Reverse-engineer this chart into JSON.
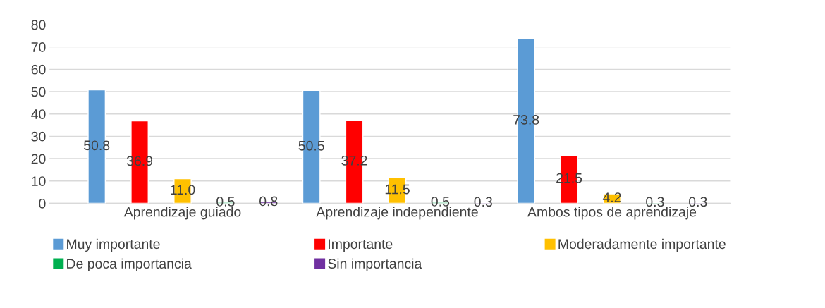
{
  "chart_data": {
    "type": "bar",
    "categories": [
      "Aprendizaje guiado",
      "Aprendizaje independiente",
      "Ambos tipos de aprendizaje"
    ],
    "series": [
      {
        "name": "Muy importante",
        "color": "#5b9bd5",
        "values": [
          50.8,
          50.5,
          73.8
        ]
      },
      {
        "name": "Importante",
        "color": "#ff0000",
        "values": [
          36.9,
          37.2,
          21.5
        ]
      },
      {
        "name": "Moderadamente importante",
        "color": "#ffc000",
        "values": [
          11.0,
          11.5,
          4.2
        ],
        "value_labels": [
          "11.0",
          "11.5",
          "4.2"
        ]
      },
      {
        "name": "De poca importancia",
        "color": "#00b050",
        "values": [
          0.5,
          0.5,
          0.3
        ]
      },
      {
        "name": "Sin importancia",
        "color": "#7030a0",
        "values": [
          0.8,
          0.3,
          0.3
        ]
      }
    ],
    "ylim": [
      0,
      80
    ],
    "yticks": [
      0,
      10,
      20,
      30,
      40,
      50,
      60,
      70,
      80
    ],
    "grid": "y",
    "legend": "bottom",
    "data_labels": true
  }
}
